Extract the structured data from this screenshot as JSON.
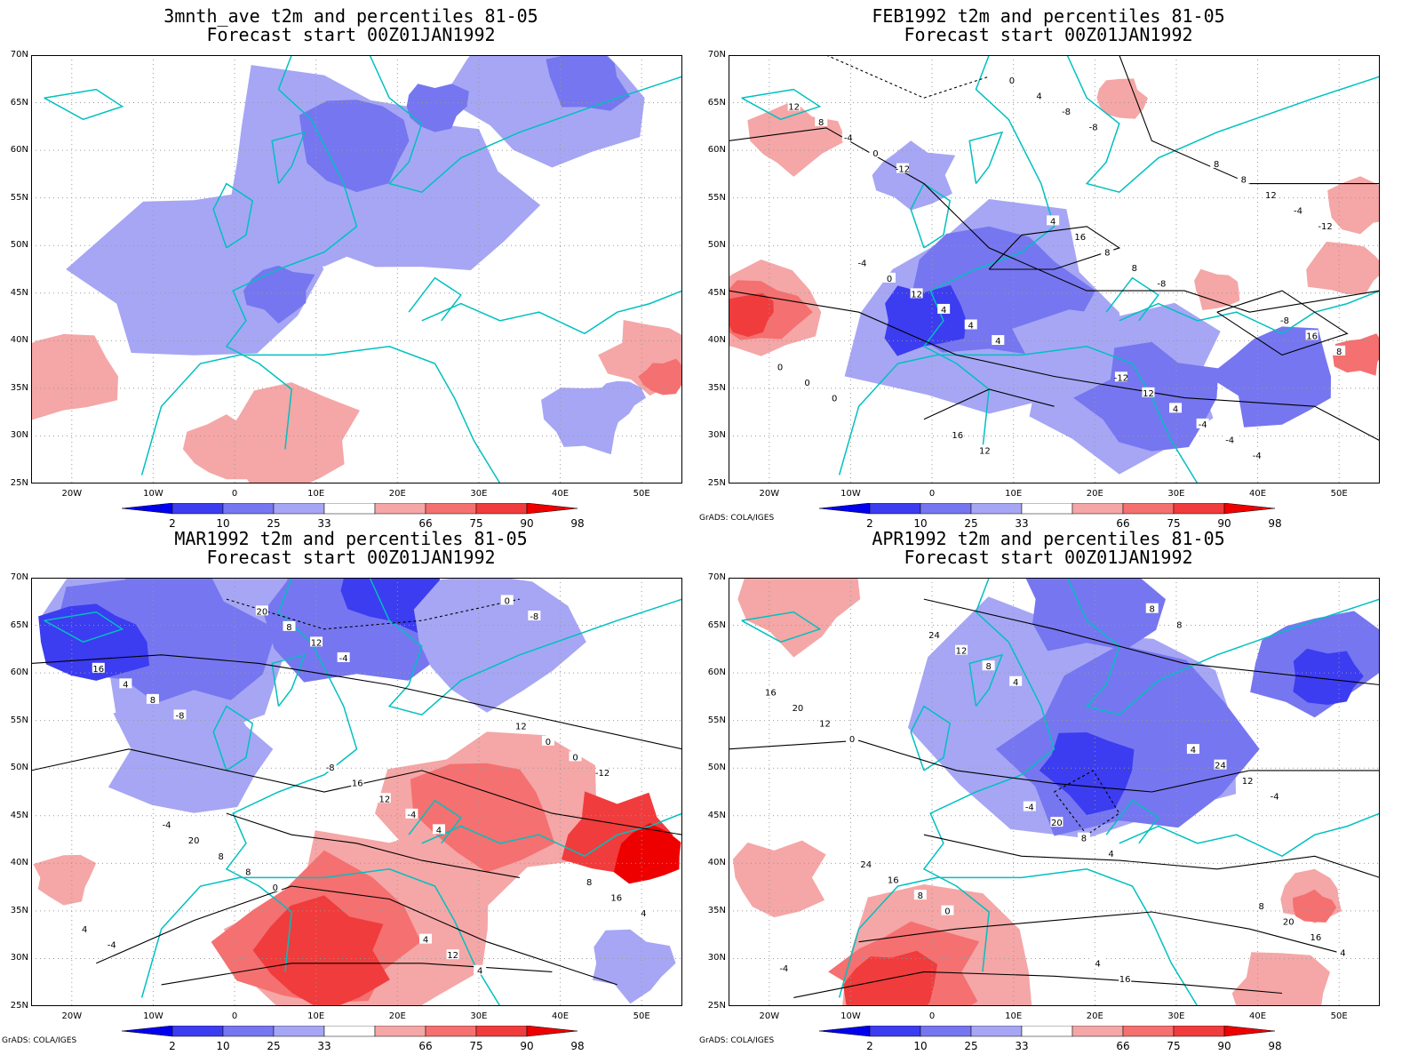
{
  "colors": {
    "blue_2": "#0000ee",
    "blue_10": "#3c3cf0",
    "blue_25": "#7676f0",
    "blue_33": "#a6a6f5",
    "red_66": "#f5a6a6",
    "red_75": "#f57070",
    "red_90": "#f03c3c",
    "red_98": "#ee0000",
    "coast": "#00c0c0",
    "contour": "#000000"
  },
  "map_extent": {
    "lon": [
      -25,
      55
    ],
    "lat": [
      25,
      70
    ]
  },
  "y_ticks": [
    "70N",
    "65N",
    "60N",
    "55N",
    "50N",
    "45N",
    "40N",
    "35N",
    "30N",
    "25N"
  ],
  "x_ticks": [
    "20W",
    "10W",
    "0",
    "10E",
    "20E",
    "30E",
    "40E",
    "50E"
  ],
  "colorbar_labels": [
    "2",
    "10",
    "25",
    "33",
    "66",
    "75",
    "90",
    "98"
  ],
  "credit": "GrADS: COLA/IGES",
  "panels": [
    {
      "title1": "3mnth_ave t2m and percentiles 81-05",
      "title2": "Forecast start 00Z01JAN1992",
      "credit": "",
      "contour_labels": []
    },
    {
      "title1": "FEB1992 t2m and percentiles 81-05",
      "title2": "Forecast start 00Z01JAN1992",
      "credit": "GrADS: COLA/IGES",
      "contour_labels": [
        "-8",
        "-4",
        "0",
        "4",
        "-8",
        "-12",
        "-12",
        "-8",
        "-4",
        "0",
        "4",
        "8",
        "-4",
        "0",
        "4",
        "-4",
        "0",
        "4",
        "8",
        "12",
        "-4",
        "0",
        "4",
        "8",
        "12",
        "16",
        "8",
        "8",
        "12",
        "12",
        "16",
        "0",
        "4",
        "8",
        "12",
        "16",
        "-12",
        "-8",
        "-4"
      ]
    },
    {
      "title1": "MAR1992 t2m and percentiles 81-05",
      "title2": "Forecast start 00Z01JAN1992",
      "credit": "GrADS: COLA/IGES",
      "contour_labels": [
        "-8",
        "-4",
        "0",
        "4",
        "-12",
        "-8",
        "-4",
        "0",
        "4",
        "8",
        "-4",
        "0",
        "8",
        "12",
        "4",
        "4",
        "8",
        "12",
        "0",
        "4",
        "8",
        "12",
        "16",
        "20",
        "16",
        "12",
        "16",
        "20",
        "4",
        "8",
        "-4",
        "-8"
      ]
    },
    {
      "title1": "APR1992 t2m and percentiles 81-05",
      "title2": "Forecast start 00Z01JAN1992",
      "credit": "GrADS: COLA/IGES",
      "contour_labels": [
        "-4",
        "0",
        "4",
        "-4",
        "0",
        "4",
        "8",
        "4",
        "8",
        "8",
        "12",
        "12",
        "8",
        "8",
        "16",
        "16",
        "20",
        "24",
        "20",
        "12",
        "16",
        "20",
        "24",
        "-4",
        "4",
        "16",
        "24",
        "4",
        "8"
      ]
    }
  ]
}
